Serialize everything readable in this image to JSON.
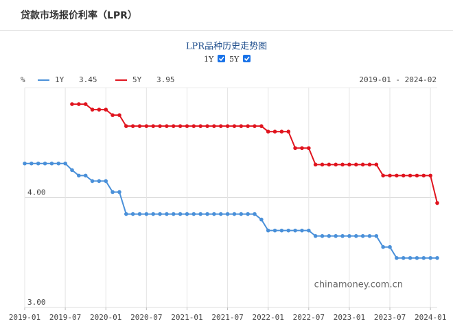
{
  "header": {
    "title": "贷款市场报价利率（LPR）"
  },
  "chart_data": {
    "type": "line",
    "title": "LPR品种历史走势图",
    "y_unit": "%",
    "date_range": "2019-01 - 2024-02",
    "watermark": "chinamoney.com.cn",
    "x": [
      "2019-01",
      "2019-02",
      "2019-03",
      "2019-04",
      "2019-05",
      "2019-06",
      "2019-07",
      "2019-08",
      "2019-09",
      "2019-10",
      "2019-11",
      "2019-12",
      "2020-01",
      "2020-02",
      "2020-03",
      "2020-04",
      "2020-05",
      "2020-06",
      "2020-07",
      "2020-08",
      "2020-09",
      "2020-10",
      "2020-11",
      "2020-12",
      "2021-01",
      "2021-02",
      "2021-03",
      "2021-04",
      "2021-05",
      "2021-06",
      "2021-07",
      "2021-08",
      "2021-09",
      "2021-10",
      "2021-11",
      "2021-12",
      "2022-01",
      "2022-02",
      "2022-03",
      "2022-04",
      "2022-05",
      "2022-06",
      "2022-07",
      "2022-08",
      "2022-09",
      "2022-10",
      "2022-11",
      "2022-12",
      "2023-01",
      "2023-02",
      "2023-03",
      "2023-04",
      "2023-05",
      "2023-06",
      "2023-07",
      "2023-08",
      "2023-09",
      "2023-10",
      "2023-11",
      "2023-12",
      "2024-01",
      "2024-02"
    ],
    "series": [
      {
        "name": "1Y",
        "color": "#4a90d9",
        "values": [
          4.31,
          4.31,
          4.31,
          4.31,
          4.31,
          4.31,
          4.31,
          4.25,
          4.2,
          4.2,
          4.15,
          4.15,
          4.15,
          4.05,
          4.05,
          3.85,
          3.85,
          3.85,
          3.85,
          3.85,
          3.85,
          3.85,
          3.85,
          3.85,
          3.85,
          3.85,
          3.85,
          3.85,
          3.85,
          3.85,
          3.85,
          3.85,
          3.85,
          3.85,
          3.85,
          3.8,
          3.7,
          3.7,
          3.7,
          3.7,
          3.7,
          3.7,
          3.7,
          3.65,
          3.65,
          3.65,
          3.65,
          3.65,
          3.65,
          3.65,
          3.65,
          3.65,
          3.65,
          3.55,
          3.55,
          3.45,
          3.45,
          3.45,
          3.45,
          3.45,
          3.45,
          3.45
        ]
      },
      {
        "name": "5Y",
        "color": "#e0141e",
        "values": [
          null,
          null,
          null,
          null,
          null,
          null,
          null,
          4.85,
          4.85,
          4.85,
          4.8,
          4.8,
          4.8,
          4.75,
          4.75,
          4.65,
          4.65,
          4.65,
          4.65,
          4.65,
          4.65,
          4.65,
          4.65,
          4.65,
          4.65,
          4.65,
          4.65,
          4.65,
          4.65,
          4.65,
          4.65,
          4.65,
          4.65,
          4.65,
          4.65,
          4.65,
          4.6,
          4.6,
          4.6,
          4.6,
          4.45,
          4.45,
          4.45,
          4.3,
          4.3,
          4.3,
          4.3,
          4.3,
          4.3,
          4.3,
          4.3,
          4.3,
          4.3,
          4.2,
          4.2,
          4.2,
          4.2,
          4.2,
          4.2,
          4.2,
          4.2,
          3.95
        ]
      }
    ],
    "xlim": [
      "2019-01",
      "2024-02"
    ],
    "xticks": [
      "2019-01",
      "2019-07",
      "2020-01",
      "2020-07",
      "2021-01",
      "2021-07",
      "2022-01",
      "2022-07",
      "2023-01",
      "2023-07",
      "2024-01"
    ],
    "ylim": [
      3,
      5
    ],
    "yticks": [
      {
        "value": 3,
        "label": "3.00"
      },
      {
        "value": 4,
        "label": "4.00"
      }
    ],
    "grid": true
  }
}
